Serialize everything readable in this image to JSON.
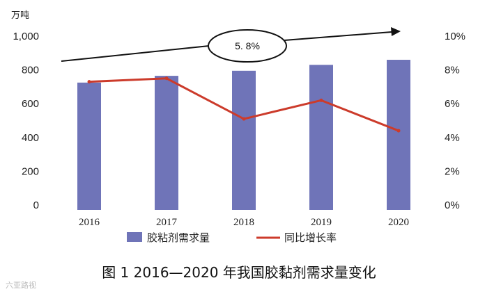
{
  "chart_data": {
    "type": "bar",
    "categories": [
      "2016",
      "2017",
      "2018",
      "2019",
      "2020"
    ],
    "series": [
      {
        "name": "胶粘剂需求量",
        "type": "bar",
        "axis": "left",
        "values": [
          725,
          765,
          795,
          830,
          860
        ]
      },
      {
        "name": "同比增长率",
        "type": "line",
        "axis": "right",
        "values": [
          7.3,
          7.5,
          5.1,
          6.2,
          4.4
        ]
      }
    ],
    "y_left": {
      "unit": "万吨",
      "ylim": [
        0,
        1000
      ],
      "ticks": [
        "0",
        "200",
        "400",
        "600",
        "800",
        "1,000"
      ]
    },
    "y_right": {
      "ylim": [
        0,
        10
      ],
      "ticks": [
        "0%",
        "2%",
        "4%",
        "6%",
        "8%",
        "10%"
      ]
    },
    "annotation": "5. 8%",
    "legend": {
      "placement": "bottom"
    },
    "grid": false,
    "caption": "图 1  2016—2020 年我国胶黏剂需求量变化",
    "watermark": "六亚路视",
    "colors": {
      "bar": "#6f74b8",
      "line": "#cc3b2b",
      "text": "#222222",
      "arrow": "#111111"
    }
  }
}
